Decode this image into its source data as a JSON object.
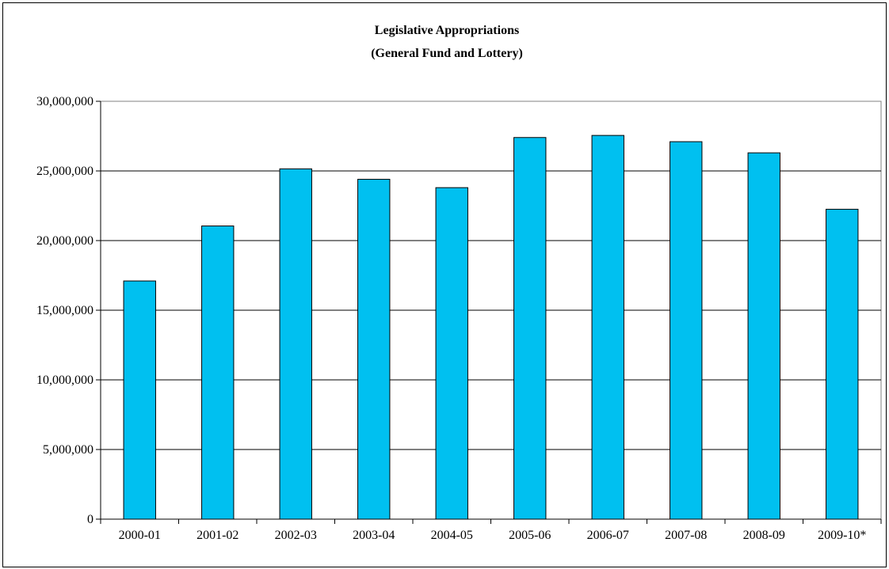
{
  "chart_data": {
    "type": "bar",
    "title": "Legislative Appropriations",
    "subtitle": "(General Fund and Lottery)",
    "xlabel": "",
    "ylabel": "",
    "categories": [
      "2000-01",
      "2001-02",
      "2002-03",
      "2003-04",
      "2004-05",
      "2005-06",
      "2006-07",
      "2007-08",
      "2008-09",
      "2009-10*"
    ],
    "values": [
      17100000,
      21050000,
      25150000,
      24400000,
      23800000,
      27400000,
      27550000,
      27100000,
      26300000,
      22250000
    ],
    "ylim": [
      0,
      30000000
    ],
    "yticks": [
      0,
      5000000,
      10000000,
      15000000,
      20000000,
      25000000,
      30000000
    ],
    "ytick_labels": [
      "0",
      "5,000,000",
      "10,000,000",
      "15,000,000",
      "20,000,000",
      "25,000,000",
      "30,000,000"
    ],
    "grid": true,
    "legend": "none",
    "bar_color": "#00c0f0"
  }
}
